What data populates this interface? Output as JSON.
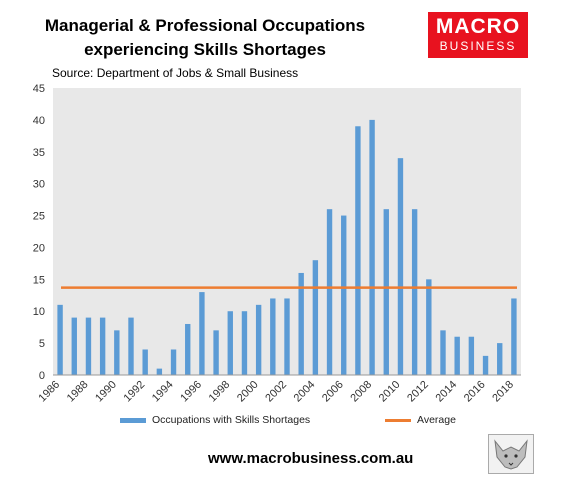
{
  "header": {
    "title_line1": "Managerial & Professional Occupations",
    "title_line2": "experiencing Skills Shortages",
    "source": "Source: Department of Jobs & Small Business"
  },
  "logo": {
    "line1": "MACRO",
    "line2": "BUSINESS",
    "color": "#e8121f"
  },
  "footer": {
    "website": "www.macrobusiness.com.au"
  },
  "chart_data": {
    "type": "bar",
    "title": "Managerial & Professional Occupations experiencing Skills Shortages",
    "x": [
      1986,
      1987,
      1988,
      1989,
      1990,
      1991,
      1992,
      1993,
      1994,
      1995,
      1996,
      1997,
      1998,
      1999,
      2000,
      2001,
      2002,
      2003,
      2004,
      2005,
      2006,
      2007,
      2008,
      2009,
      2010,
      2011,
      2012,
      2013,
      2014,
      2015,
      2016,
      2017,
      2018
    ],
    "x_tick_labels": [
      "1986",
      "1988",
      "1990",
      "1992",
      "1994",
      "1996",
      "1998",
      "2000",
      "2002",
      "2004",
      "2006",
      "2008",
      "2010",
      "2012",
      "2014",
      "2016",
      "2018"
    ],
    "series": [
      {
        "name": "Occupations with Skills Shortages",
        "type": "bar",
        "color": "#5b9bd5",
        "values": [
          11,
          9,
          9,
          9,
          7,
          9,
          4,
          1,
          4,
          8,
          13,
          7,
          10,
          10,
          11,
          12,
          12,
          16,
          18,
          26,
          25,
          39,
          40,
          26,
          34,
          26,
          15,
          7,
          6,
          6,
          3,
          5,
          12
        ]
      },
      {
        "name": "Average",
        "type": "line",
        "color": "#ed7d31",
        "value": 13.7
      }
    ],
    "y_ticks": [
      0,
      5,
      10,
      15,
      20,
      25,
      30,
      35,
      40,
      45
    ],
    "ylim": [
      0,
      45
    ],
    "grid": false,
    "plot_background": "#e8e8e8",
    "legend": "bottom"
  }
}
